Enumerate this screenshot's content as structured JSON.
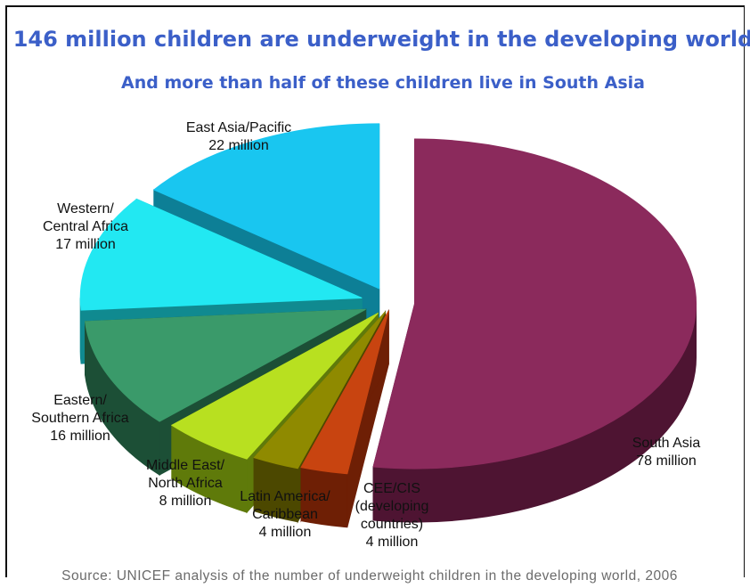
{
  "chart_data": {
    "type": "pie",
    "style": "3d-exploded",
    "title": "146 million children are underweight in the developing world",
    "subtitle": "And more than half of these children live in South Asia",
    "unit": "million",
    "source": "Source: UNICEF analysis of the number of underweight children in the developing world, 2006",
    "slices": [
      {
        "label_lines": [
          "South Asia",
          "78 million"
        ],
        "value": 78,
        "color": "#8b2a5c",
        "side": "#4e1432"
      },
      {
        "label_lines": [
          "CEE/CIS",
          "(developing",
          "countries)",
          "4 million"
        ],
        "value": 4,
        "color": "#c84410",
        "side": "#6e1f05"
      },
      {
        "label_lines": [
          "Latin America/",
          "Caribbean",
          "4 million"
        ],
        "value": 4,
        "color": "#8f8a00",
        "side": "#4c4800"
      },
      {
        "label_lines": [
          "Middle East/",
          "North Africa",
          "8 million"
        ],
        "value": 8,
        "color": "#b8e020",
        "side": "#5f7a0a"
      },
      {
        "label_lines": [
          "Eastern/",
          "Southern Africa",
          "16 million"
        ],
        "value": 16,
        "color": "#3a9a6a",
        "side": "#1c4f36"
      },
      {
        "label_lines": [
          "Western/",
          "Central Africa",
          "17 million"
        ],
        "value": 17,
        "color": "#22e8f2",
        "side": "#108a90"
      },
      {
        "label_lines": [
          "East Asia/Pacific",
          "22 million"
        ],
        "value": 22,
        "color": "#19c6f0",
        "side": "#0d7f96"
      }
    ]
  }
}
